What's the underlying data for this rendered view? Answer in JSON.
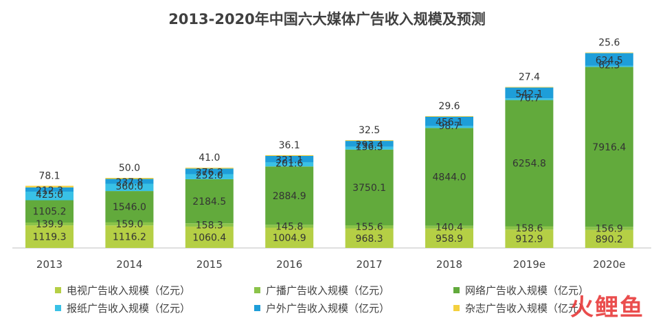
{
  "chart_data": {
    "type": "bar",
    "stacked": true,
    "title": "2013-2020年中国六大媒体广告收入规模及预测",
    "categories": [
      "2013",
      "2014",
      "2015",
      "2016",
      "2017",
      "2018",
      "2019e",
      "2020e"
    ],
    "series": [
      {
        "name": "电视广告收入规模（亿元）",
        "color": "#b5cf45",
        "values": [
          1119.3,
          1116.2,
          1060.4,
          1004.9,
          968.3,
          958.9,
          912.9,
          890.2
        ]
      },
      {
        "name": "广播广告收入规模（亿元）",
        "color": "#8bc34a",
        "values": [
          139.9,
          159.0,
          158.3,
          145.8,
          155.6,
          140.4,
          158.6,
          156.9
        ]
      },
      {
        "name": "网络广告收入规模（亿元）",
        "color": "#62aa3c",
        "values": [
          1105.2,
          1546.0,
          2184.5,
          2884.9,
          3750.1,
          4844.0,
          6254.8,
          7916.4
        ]
      },
      {
        "name": "报纸广告收入规模（亿元）",
        "color": "#39c1e6",
        "values": [
          425.0,
          360.0,
          252.0,
          201.6,
          136.3,
          98.7,
          76.7,
          62.3
        ]
      },
      {
        "name": "户外广告收入规模（亿元）",
        "color": "#1e9ed9",
        "values": [
          212.3,
          237.8,
          276.2,
          321.1,
          293.4,
          456.1,
          542.1,
          624.5
        ]
      },
      {
        "name": "杂志广告收入规模（亿元）",
        "color": "#f4d03f",
        "values": [
          78.1,
          50.0,
          41.0,
          36.1,
          32.5,
          29.6,
          27.4,
          25.6
        ]
      }
    ],
    "legend_position": "bottom",
    "grid": false
  },
  "watermark": "火鲤鱼"
}
